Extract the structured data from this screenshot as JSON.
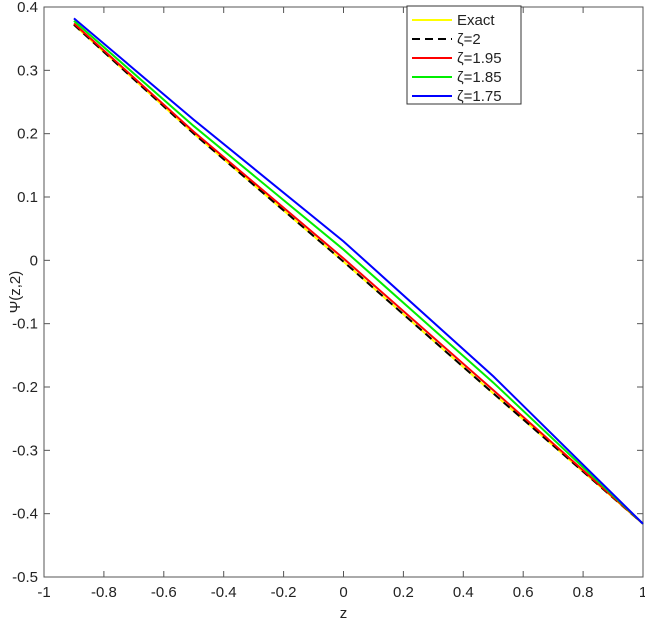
{
  "chart_data": {
    "type": "line",
    "title": "",
    "xlabel": "z",
    "ylabel": "Ψ(z,2)",
    "xlim": [
      -1,
      1
    ],
    "ylim": [
      -0.5,
      0.4
    ],
    "xticks": [
      "-1",
      "-0.8",
      "-0.6",
      "-0.4",
      "-0.2",
      "0",
      "0.2",
      "0.4",
      "0.6",
      "0.8",
      "1"
    ],
    "yticks": [
      "0.4",
      "0.3",
      "0.2",
      "0.1",
      "0",
      "-0.1",
      "-0.2",
      "-0.3",
      "-0.4",
      "-0.5"
    ],
    "legend_position": "top-right",
    "x": [
      -0.9,
      -0.5,
      0,
      0.5,
      1
    ],
    "series": [
      {
        "name": "Exact",
        "color": "#ffff00",
        "dash": false,
        "values": [
          0.372,
          0.2,
          -0.002,
          -0.21,
          -0.416
        ]
      },
      {
        "name": "ζ=2",
        "color": "#000000",
        "dash": true,
        "values": [
          0.372,
          0.2,
          -0.002,
          -0.21,
          -0.416
        ]
      },
      {
        "name": "ζ=1.95",
        "color": "#ff0000",
        "dash": false,
        "values": [
          0.374,
          0.203,
          0.003,
          -0.205,
          -0.416
        ]
      },
      {
        "name": "ζ=1.85",
        "color": "#00ee00",
        "dash": false,
        "values": [
          0.378,
          0.212,
          0.017,
          -0.193,
          -0.416
        ]
      },
      {
        "name": "ζ=1.75",
        "color": "#0000ff",
        "dash": false,
        "values": [
          0.382,
          0.222,
          0.03,
          -0.183,
          -0.416
        ]
      }
    ]
  }
}
